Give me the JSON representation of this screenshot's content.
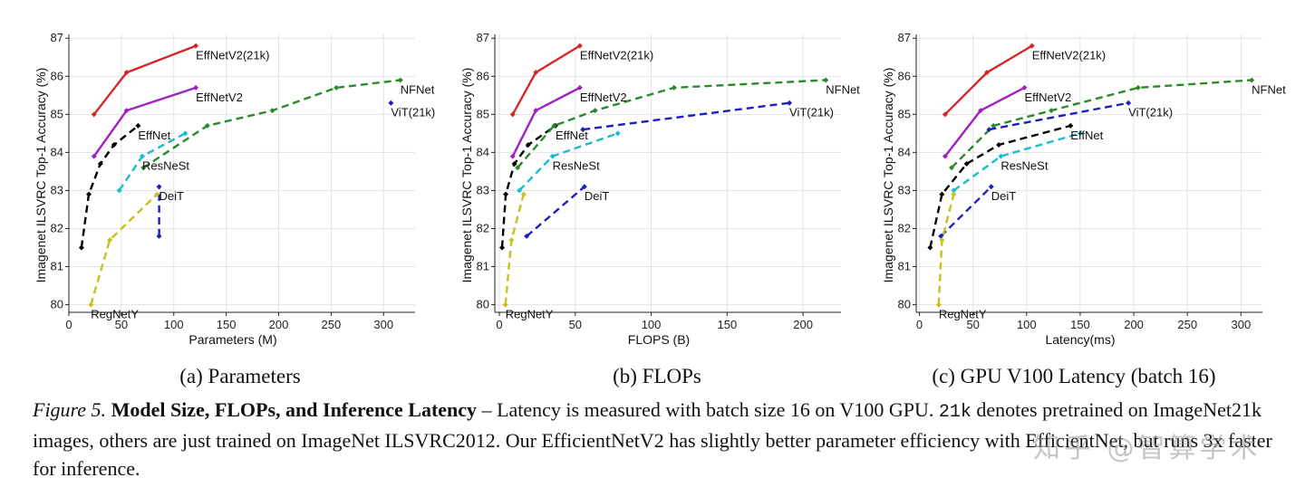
{
  "chart_data": [
    {
      "type": "line",
      "xlabel": "Parameters (M)",
      "ylabel": "Imagenet ILSVRC Top-1 Accuracy (%)",
      "xlim": [
        0,
        330
      ],
      "ylim": [
        79.8,
        87.1
      ],
      "xticks": [
        0,
        50,
        100,
        150,
        200,
        250,
        300
      ],
      "yticks": [
        80,
        81,
        82,
        83,
        84,
        85,
        86,
        87
      ],
      "grid": true,
      "series": [
        {
          "name": "EffNetV2(21k)",
          "color": "#d62728",
          "dash": false,
          "x": [
            24,
            55,
            121
          ],
          "y": [
            85.0,
            86.1,
            86.8
          ]
        },
        {
          "name": "EffNetV2",
          "color": "#a020c0",
          "dash": false,
          "x": [
            24,
            55,
            121
          ],
          "y": [
            83.9,
            85.1,
            85.7
          ]
        },
        {
          "name": "EffNet",
          "color": "#000000",
          "dash": true,
          "x": [
            12,
            19,
            30,
            43,
            66
          ],
          "y": [
            81.5,
            82.9,
            83.7,
            84.2,
            84.7
          ]
        },
        {
          "name": "ResNeSt",
          "color": "#17becf",
          "dash": true,
          "x": [
            48,
            70,
            111
          ],
          "y": [
            83.0,
            83.9,
            84.5
          ]
        },
        {
          "name": "NFNet",
          "color": "#2a8a2a",
          "dash": true,
          "x": [
            71,
            132,
            194,
            255,
            316
          ],
          "y": [
            83.6,
            84.7,
            85.1,
            85.7,
            85.9
          ]
        },
        {
          "name": "ViT(21k)",
          "color": "#1f1fbf",
          "dash": true,
          "x": [
            307
          ],
          "y": [
            85.3
          ]
        },
        {
          "name": "DeiT",
          "color": "#1f1fbf",
          "dash": true,
          "x": [
            86,
            86
          ],
          "y": [
            81.8,
            83.1
          ]
        },
        {
          "name": "RegNetY",
          "color": "#c8c020",
          "dash": true,
          "x": [
            21,
            39,
            84
          ],
          "y": [
            80.0,
            81.7,
            82.9
          ]
        }
      ],
      "labels": [
        {
          "text": "EffNetV2(21k)",
          "x": 121,
          "y": 86.8
        },
        {
          "text": "EffNetV2",
          "x": 121,
          "y": 85.7
        },
        {
          "text": "EffNet",
          "x": 66,
          "y": 84.7
        },
        {
          "text": "ResNeSt",
          "x": 70,
          "y": 83.9
        },
        {
          "text": "NFNet",
          "x": 316,
          "y": 85.9
        },
        {
          "text": "ViT(21k)",
          "x": 307,
          "y": 85.3
        },
        {
          "text": "DeiT",
          "x": 86,
          "y": 83.1
        },
        {
          "text": "RegNetY",
          "x": 21,
          "y": 80.0
        }
      ]
    },
    {
      "type": "line",
      "xlabel": "FLOPS (B)",
      "ylabel": "Imagenet ILSVRC Top-1 Accuracy (%)",
      "xlim": [
        -3,
        225
      ],
      "ylim": [
        79.8,
        87.1
      ],
      "xticks": [
        0,
        50,
        100,
        150,
        200
      ],
      "yticks": [
        80,
        81,
        82,
        83,
        84,
        85,
        86,
        87
      ],
      "grid": true,
      "series": [
        {
          "name": "EffNetV2(21k)",
          "color": "#d62728",
          "dash": false,
          "x": [
            8.8,
            24,
            53
          ],
          "y": [
            85.0,
            86.1,
            86.8
          ]
        },
        {
          "name": "EffNetV2",
          "color": "#a020c0",
          "dash": false,
          "x": [
            8.8,
            24,
            53
          ],
          "y": [
            83.9,
            85.1,
            85.7
          ]
        },
        {
          "name": "EffNet",
          "color": "#000000",
          "dash": true,
          "x": [
            1.8,
            4.2,
            9.9,
            19,
            37
          ],
          "y": [
            81.5,
            82.9,
            83.7,
            84.2,
            84.7
          ]
        },
        {
          "name": "ResNeSt",
          "color": "#17becf",
          "dash": true,
          "x": [
            13.2,
            35,
            78
          ],
          "y": [
            83.0,
            83.9,
            84.5
          ]
        },
        {
          "name": "NFNet",
          "color": "#2a8a2a",
          "dash": true,
          "x": [
            12,
            36,
            63,
            115,
            215
          ],
          "y": [
            83.6,
            84.7,
            85.1,
            85.7,
            85.9
          ]
        },
        {
          "name": "ViT(21k)",
          "color": "#1f1fbf",
          "dash": true,
          "x": [
            55,
            191
          ],
          "y": [
            84.6,
            85.3
          ]
        },
        {
          "name": "DeiT",
          "color": "#1f1fbf",
          "dash": true,
          "x": [
            18,
            56
          ],
          "y": [
            81.8,
            83.1
          ]
        },
        {
          "name": "RegNetY",
          "color": "#c8c020",
          "dash": true,
          "x": [
            4,
            8,
            16
          ],
          "y": [
            80.0,
            81.7,
            82.9
          ]
        }
      ],
      "labels": [
        {
          "text": "EffNetV2(21k)",
          "x": 53,
          "y": 86.8
        },
        {
          "text": "EffNetV2",
          "x": 53,
          "y": 85.7
        },
        {
          "text": "EffNet",
          "x": 37,
          "y": 84.7
        },
        {
          "text": "ResNeSt",
          "x": 35,
          "y": 83.9
        },
        {
          "text": "NFNet",
          "x": 215,
          "y": 85.9
        },
        {
          "text": "ViT(21k)",
          "x": 191,
          "y": 85.3
        },
        {
          "text": "DeiT",
          "x": 56,
          "y": 83.1
        },
        {
          "text": "RegNetY",
          "x": 4,
          "y": 80.0
        }
      ]
    },
    {
      "type": "line",
      "xlabel": "Latency(ms)",
      "ylabel": "Imagenet ILSVRC Top-1 Accuracy (%)",
      "xlim": [
        -3,
        320
      ],
      "ylim": [
        79.8,
        87.1
      ],
      "xticks": [
        0,
        50,
        100,
        150,
        200,
        250,
        300
      ],
      "yticks": [
        80,
        81,
        82,
        83,
        84,
        85,
        86,
        87
      ],
      "grid": true,
      "series": [
        {
          "name": "EffNetV2(21k)",
          "color": "#d62728",
          "dash": false,
          "x": [
            24,
            63,
            105
          ],
          "y": [
            85.0,
            86.1,
            86.8
          ]
        },
        {
          "name": "EffNetV2",
          "color": "#a020c0",
          "dash": false,
          "x": [
            24,
            57,
            98
          ],
          "y": [
            83.9,
            85.1,
            85.7
          ]
        },
        {
          "name": "EffNet",
          "color": "#000000",
          "dash": true,
          "x": [
            10,
            21,
            44,
            74,
            141
          ],
          "y": [
            81.5,
            82.9,
            83.7,
            84.2,
            84.7
          ]
        },
        {
          "name": "ResNeSt",
          "color": "#17becf",
          "dash": true,
          "x": [
            32,
            76,
            150
          ],
          "y": [
            83.0,
            83.9,
            84.5
          ]
        },
        {
          "name": "NFNet",
          "color": "#2a8a2a",
          "dash": true,
          "x": [
            30,
            69,
            123,
            204,
            310
          ],
          "y": [
            83.6,
            84.7,
            85.1,
            85.7,
            85.9
          ]
        },
        {
          "name": "ViT(21k)",
          "color": "#1f1fbf",
          "dash": true,
          "x": [
            65,
            195
          ],
          "y": [
            84.6,
            85.3
          ]
        },
        {
          "name": "DeiT",
          "color": "#1f1fbf",
          "dash": true,
          "x": [
            20,
            67
          ],
          "y": [
            81.8,
            83.1
          ]
        },
        {
          "name": "RegNetY",
          "color": "#c8c020",
          "dash": true,
          "x": [
            18,
            21,
            32
          ],
          "y": [
            80.0,
            81.7,
            82.9
          ]
        }
      ],
      "labels": [
        {
          "text": "EffNetV2(21k)",
          "x": 105,
          "y": 86.8
        },
        {
          "text": "EffNetV2",
          "x": 98,
          "y": 85.7
        },
        {
          "text": "EffNet",
          "x": 141,
          "y": 84.7
        },
        {
          "text": "ResNeSt",
          "x": 76,
          "y": 83.9
        },
        {
          "text": "NFNet",
          "x": 310,
          "y": 85.9
        },
        {
          "text": "ViT(21k)",
          "x": 195,
          "y": 85.3
        },
        {
          "text": "DeiT",
          "x": 67,
          "y": 83.1
        },
        {
          "text": "RegNetY",
          "x": 18,
          "y": 80.0
        }
      ]
    }
  ],
  "subcaptions": [
    "(a) Parameters",
    "(b) FLOPs",
    "(c) GPU V100 Latency (batch 16)"
  ],
  "caption": {
    "fig_label": "Figure 5.",
    "title": "Model Size, FLOPs, and Inference Latency",
    "part1": " – Latency is measured with batch size 16 on V100 GPU. ",
    "code": "21k",
    "part2": " denotes pretrained on ImageNet21k images, others are just trained on ImageNet ILSVRC2012. Our EfficientNetV2 has slightly better parameter efficiency with EfficientNet, but runs 3x faster for inference."
  },
  "watermark": "知乎 @智算学术"
}
